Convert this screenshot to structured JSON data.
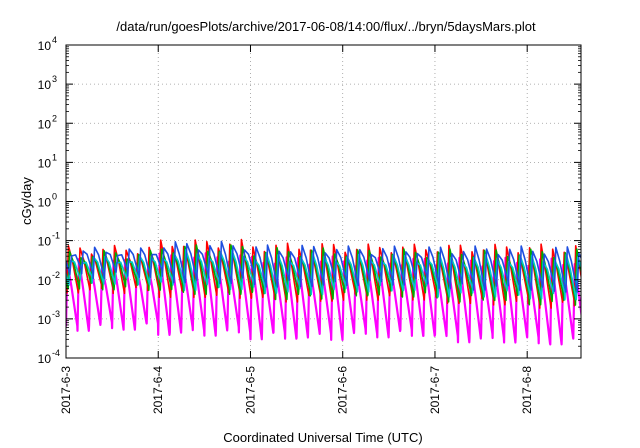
{
  "chart_data": {
    "type": "line",
    "title": "/data/run/goesPlots/archive/2017-06-08/14:00/flux/../bryn/5daysMars.plot",
    "xlabel": "Coordinated Universal Time (UTC)",
    "ylabel": "cGy/day",
    "yscale": "log",
    "ylim": [
      0.0001,
      10000
    ],
    "xlim": [
      "2017-06-03T00:00",
      "2017-06-08T14:00"
    ],
    "grid": true,
    "legend": "none",
    "x_ticks": [
      "2017-6-3",
      "2017-6-4",
      "2017-6-5",
      "2017-6-6",
      "2017-6-7",
      "2017-6-8"
    ],
    "y_ticks": [
      {
        "base": "10",
        "exp": "-4",
        "value": 0.0001
      },
      {
        "base": "10",
        "exp": "-3",
        "value": 0.001
      },
      {
        "base": "10",
        "exp": "-2",
        "value": 0.01
      },
      {
        "base": "10",
        "exp": "-1",
        "value": 0.1
      },
      {
        "base": "10",
        "exp": "0",
        "value": 1
      },
      {
        "base": "10",
        "exp": "1",
        "value": 10
      },
      {
        "base": "10",
        "exp": "2",
        "value": 100
      },
      {
        "base": "10",
        "exp": "3",
        "value": 1000
      },
      {
        "base": "10",
        "exp": "4",
        "value": 10000
      }
    ],
    "pattern": {
      "period_hours": 3,
      "description_of_envelope": "sawtooth: rapid rise at each period start, gradual decay",
      "days": [
        {
          "date": "2017-06-03",
          "peak_top": 0.06,
          "trough_low": 0.0012
        },
        {
          "date": "2017-06-04",
          "peak_top": 0.085,
          "trough_low": 0.0009
        },
        {
          "date": "2017-06-05",
          "peak_top": 0.07,
          "trough_low": 0.0007
        },
        {
          "date": "2017-06-06",
          "peak_top": 0.065,
          "trough_low": 0.0008
        },
        {
          "date": "2017-06-07",
          "peak_top": 0.065,
          "trough_low": 0.0006
        },
        {
          "date": "2017-06-08",
          "peak_top": 0.065,
          "trough_low": 0.0005
        }
      ]
    },
    "series": [
      {
        "color": "#ff00ff",
        "peak_factor": 0.45,
        "trough_factor": 0.55
      },
      {
        "color": "#ff0000",
        "peak_factor": 1.0,
        "trough_factor": 5.0
      },
      {
        "color": "#00aa00",
        "peak_factor": 0.75,
        "trough_factor": 6.0
      },
      {
        "color": "#00c8c8",
        "peak_factor": 0.55,
        "trough_factor": 8.0
      },
      {
        "color": "#1f4fe0",
        "peak_factor": 0.9,
        "trough_factor": 12.0
      }
    ]
  }
}
